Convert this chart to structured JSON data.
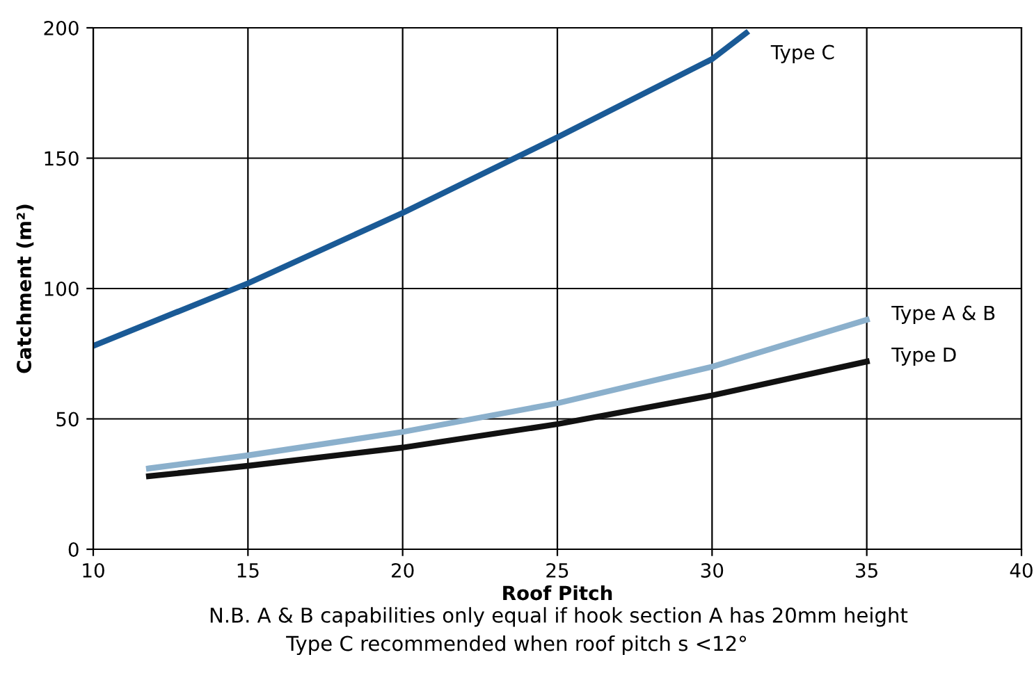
{
  "chart_data": {
    "type": "line",
    "xlabel": "Roof Pitch",
    "ylabel": "Catchment (m²)",
    "xlim": [
      10,
      40
    ],
    "xticks": [
      10,
      15,
      20,
      25,
      30,
      35,
      40
    ],
    "ylim": [
      0,
      200
    ],
    "yticks": [
      0,
      50,
      100,
      150,
      200
    ],
    "grid": true,
    "legend": false,
    "marker": "none",
    "line_style": "solid",
    "series": [
      {
        "name": "Type C",
        "color": "#1a5a96",
        "x": [
          10,
          15,
          20,
          25,
          30,
          31.1
        ],
        "values": [
          78,
          102,
          129,
          158,
          188,
          198
        ]
      },
      {
        "name": "Type A & B",
        "color": "#8bb0cc",
        "x": [
          11.8,
          15,
          20,
          25,
          30,
          35
        ],
        "values": [
          31,
          36,
          45,
          56,
          70,
          88
        ]
      },
      {
        "name": "Type D",
        "color": "#111111",
        "x": [
          11.8,
          15,
          20,
          25,
          30,
          35
        ],
        "values": [
          28,
          32,
          39,
          48,
          59,
          72
        ]
      }
    ],
    "annotations": [
      "N.B. A & B capabilities only equal if hook section A has 20mm height",
      "Type C recommended when roof pitch s <12°"
    ]
  }
}
